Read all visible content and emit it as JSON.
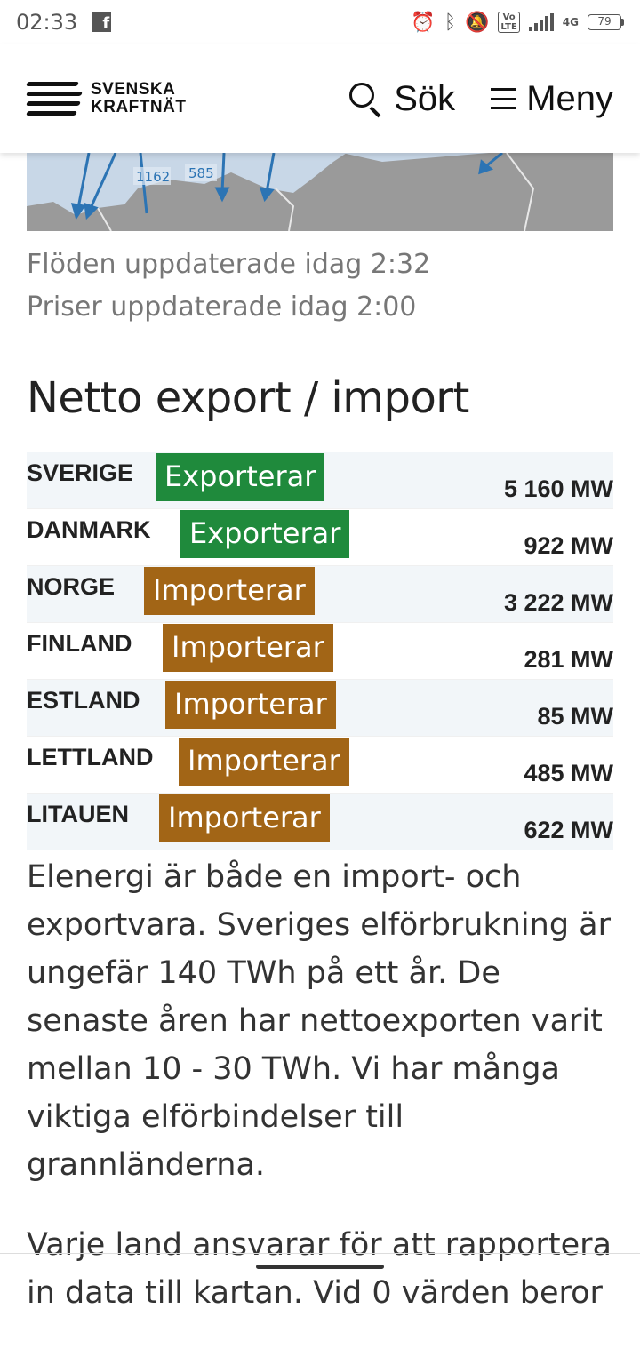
{
  "status_bar": {
    "time": "02:33",
    "battery": "79",
    "network": "4G"
  },
  "header": {
    "logo_line1": "SVENSKA",
    "logo_line2": "KRAFTNÄT",
    "search_label": "Sök",
    "menu_label": "Meny"
  },
  "map": {
    "flow_labels": [
      "1162",
      "585"
    ]
  },
  "updates": {
    "flows": "Flöden uppdaterade idag 2:32",
    "prices": "Priser uppdaterade idag 2:00"
  },
  "section_title": "Netto export / import",
  "rows": [
    {
      "country": "SVERIGE",
      "status": "Exporterar",
      "type": "export",
      "value": "5 160 MW"
    },
    {
      "country": "DANMARK",
      "status": "Exporterar",
      "type": "export",
      "value": "922 MW"
    },
    {
      "country": "NORGE",
      "status": "Importerar",
      "type": "import",
      "value": "3 222 MW"
    },
    {
      "country": "FINLAND",
      "status": "Importerar",
      "type": "import",
      "value": "281 MW"
    },
    {
      "country": "ESTLAND",
      "status": "Importerar",
      "type": "import",
      "value": "85 MW"
    },
    {
      "country": "LETTLAND",
      "status": "Importerar",
      "type": "import",
      "value": "485 MW"
    },
    {
      "country": "LITAUEN",
      "status": "Importerar",
      "type": "import",
      "value": "622 MW"
    }
  ],
  "colors": {
    "export": "#1f8a3c",
    "import": "#a26516"
  },
  "body": {
    "paragraph1": "Elenergi är både en import- och exportvara. Sveriges elförbrukning är ungefär 140 TWh på ett år. De senaste åren har nettoexporten varit mellan 10 - 30 TWh. Vi har många viktiga elförbindelser till grannländerna.",
    "paragraph2": "Varje land ansvarar för att rapportera in data till kartan. Vid 0 värden beror"
  }
}
